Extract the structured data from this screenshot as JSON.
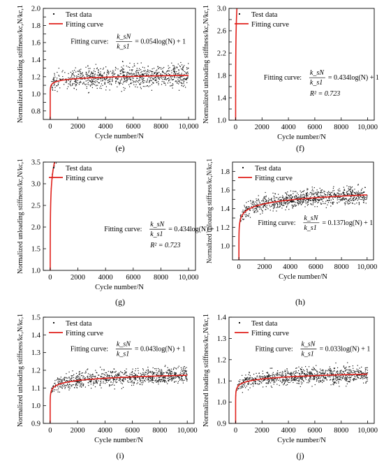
{
  "figure": {
    "panels": [
      {
        "label": "(e)",
        "xlabel": "Cycle number/N",
        "ylabel": "Normalized unloading stiffness/kc,N/kc,1",
        "legend": [
          "Test data",
          "Fitting curve"
        ],
        "formula": {
          "prefix": "Fitting curve:",
          "numerator": "k_sN",
          "denominator": "k_s1",
          "rhs": "= 0.054log(N) + 1",
          "r2": ""
        }
      },
      {
        "label": "(f)",
        "xlabel": "Cycle number/N",
        "ylabel": "Normalized unloading stiffness/kc,N/kc,1",
        "legend": [
          "Test data",
          "Fitting curve"
        ],
        "formula": {
          "prefix": "Fitting curve:",
          "numerator": "k_sN",
          "denominator": "k_s1",
          "rhs": "= 0.434log(N) + 1",
          "r2": "R² = 0.723"
        }
      },
      {
        "label": "(g)",
        "xlabel": "Cycle number/N",
        "ylabel": "Normalized unloading stiffness/kc,N/kc,1",
        "legend": [
          "Test data",
          "Fitting curve"
        ],
        "formula": {
          "prefix": "Fitting curve:",
          "numerator": "k_sN",
          "denominator": "k_s1",
          "rhs": "= 0.434log(N) + 1",
          "r2": "R² = 0.723"
        }
      },
      {
        "label": "(h)",
        "xlabel": "Cycle number/N",
        "ylabel": "Normalized unloading stiffness/kc,N/kc,1",
        "legend": [
          "Test data",
          "Fitting curve"
        ],
        "formula": {
          "prefix": "Fitting curve:",
          "numerator": "k_sN",
          "denominator": "k_s1",
          "rhs": "= 0.137log(N) + 1",
          "r2": ""
        }
      },
      {
        "label": "(i)",
        "xlabel": "Cycle number/N",
        "ylabel": "Normalized unloading stiffness/kc,N/kc,1",
        "legend": [
          "Test data",
          "Fitting curve"
        ],
        "formula": {
          "prefix": "Fitting curve:",
          "numerator": "k_sN",
          "denominator": "k_s1",
          "rhs": "= 0.043log(N) + 1",
          "r2": ""
        }
      },
      {
        "label": "(j)",
        "xlabel": "Cycle number/N",
        "ylabel": "Normalized loading stiffness/kc,N/kc,1",
        "legend": [
          "Test data",
          "Fitting curve"
        ],
        "formula": {
          "prefix": "Fitting curve:",
          "numerator": "k_sN",
          "denominator": "k_s1",
          "rhs": "= 0.033log(N) + 1",
          "r2": ""
        }
      }
    ]
  },
  "chart_data": [
    {
      "type": "scatter",
      "xlim": [
        -500,
        10500
      ],
      "ylim": [
        0.7,
        2.0
      ],
      "xticks": [
        0,
        2000,
        4000,
        6000,
        8000,
        10000
      ],
      "xtick_labels": [
        "0",
        "2000",
        "4000",
        "6000",
        "8000",
        "10,000"
      ],
      "yticks": [
        0.8,
        0.9,
        1.0,
        1.1,
        1.2,
        1.3,
        1.4,
        1.5,
        1.6,
        1.7,
        1.8,
        1.9,
        2.0
      ],
      "ytick_labels": [
        "0.8",
        "",
        "1.0",
        "",
        "1.2",
        "",
        "1.4",
        "",
        "1.6",
        "",
        "1.8",
        "",
        "2.0"
      ],
      "fit": {
        "a": 0.054,
        "b": 1,
        "base": 10
      },
      "scatter": {
        "band": 0.12,
        "x_max": 10000
      },
      "series": [
        {
          "name": "Test data"
        },
        {
          "name": "Fitting curve",
          "color": "#e0201b"
        }
      ]
    },
    {
      "type": "scatter",
      "xlim": [
        -500,
        10500
      ],
      "ylim": [
        1.0,
        3.0
      ],
      "xticks": [
        0,
        2000,
        4000,
        6000,
        8000,
        10000
      ],
      "xtick_labels": [
        "0",
        "2000",
        "4000",
        "6000",
        "8000",
        "10,000"
      ],
      "yticks": [
        1.0,
        1.2,
        1.4,
        1.6,
        1.8,
        2.0,
        2.2,
        2.4,
        2.6,
        2.8,
        3.0
      ],
      "ytick_labels": [
        "1.0",
        "",
        "1.4",
        "",
        "1.8",
        "",
        "2.2",
        "",
        "2.6",
        "",
        "3.0"
      ],
      "fit": {
        "a": 0.434,
        "b": 1,
        "base": "e"
      },
      "scatter": {
        "band": 0.12,
        "x_max": 10000
      },
      "series": [
        {
          "name": "Test data"
        },
        {
          "name": "Fitting curve",
          "color": "#e0201b"
        }
      ]
    },
    {
      "type": "scatter",
      "xlim": [
        -500,
        10500
      ],
      "ylim": [
        1.0,
        3.5
      ],
      "xticks": [
        0,
        2000,
        4000,
        6000,
        8000,
        10000
      ],
      "xtick_labels": [
        "0",
        "2000",
        "4000",
        "6000",
        "8000",
        "10,000"
      ],
      "yticks": [
        1.0,
        1.5,
        2.0,
        2.5,
        3.0,
        3.5
      ],
      "ytick_labels": [
        "1.0",
        "1.5",
        "2.0",
        "2.5",
        "3.0",
        "3.5"
      ],
      "fit": {
        "a": 0.434,
        "b": 1,
        "base": "e"
      },
      "scatter": {
        "band": 0.12,
        "x_max": 10000
      },
      "series": [
        {
          "name": "Test data"
        },
        {
          "name": "Fitting curve",
          "color": "#e0201b"
        }
      ]
    },
    {
      "type": "scatter",
      "xlim": [
        -500,
        10500
      ],
      "ylim": [
        0.85,
        1.9
      ],
      "xticks": [
        0,
        2000,
        4000,
        6000,
        8000,
        10000
      ],
      "xtick_labels": [
        "0",
        "2000",
        "4000",
        "6000",
        "8000",
        "10,000"
      ],
      "yticks": [
        1.0,
        1.1,
        1.2,
        1.3,
        1.4,
        1.5,
        1.6,
        1.7,
        1.8
      ],
      "ytick_labels": [
        "1.0",
        "",
        "1.2",
        "",
        "1.4",
        "",
        "1.6",
        "",
        "1.8"
      ],
      "fit": {
        "a": 0.137,
        "b": 1,
        "base": 10
      },
      "scatter": {
        "band": 0.08,
        "x_max": 10000
      },
      "series": [
        {
          "name": "Test data"
        },
        {
          "name": "Fitting curve",
          "color": "#e0201b"
        }
      ]
    },
    {
      "type": "scatter",
      "xlim": [
        -500,
        10500
      ],
      "ylim": [
        0.9,
        1.5
      ],
      "xticks": [
        0,
        2000,
        4000,
        6000,
        8000,
        10000
      ],
      "xtick_labels": [
        "0",
        "2000",
        "4000",
        "6000",
        "8000",
        "10,000"
      ],
      "yticks": [
        0.9,
        1.0,
        1.1,
        1.2,
        1.3,
        1.4,
        1.5
      ],
      "ytick_labels": [
        "0.9",
        "1.0",
        "1.1",
        "1.2",
        "1.3",
        "1.4",
        "1.5"
      ],
      "fit": {
        "a": 0.043,
        "b": 1,
        "base": 10
      },
      "scatter": {
        "band": 0.04,
        "x_max": 10000
      },
      "series": [
        {
          "name": "Test data"
        },
        {
          "name": "Fitting curve",
          "color": "#e0201b"
        }
      ]
    },
    {
      "type": "scatter",
      "xlim": [
        -500,
        10500
      ],
      "ylim": [
        0.9,
        1.4
      ],
      "xticks": [
        0,
        2000,
        4000,
        6000,
        8000,
        10000
      ],
      "xtick_labels": [
        "0",
        "2000",
        "4000",
        "6000",
        "8000",
        "10,000"
      ],
      "yticks": [
        0.9,
        1.0,
        1.1,
        1.2,
        1.3,
        1.4
      ],
      "ytick_labels": [
        "0.9",
        "1.0",
        "1.1",
        "1.2",
        "1.3",
        "1.4"
      ],
      "fit": {
        "a": 0.033,
        "b": 1,
        "base": 10
      },
      "scatter": {
        "band": 0.035,
        "x_max": 10000
      },
      "series": [
        {
          "name": "Test data"
        },
        {
          "name": "Fitting curve",
          "color": "#e0201b"
        }
      ]
    }
  ]
}
